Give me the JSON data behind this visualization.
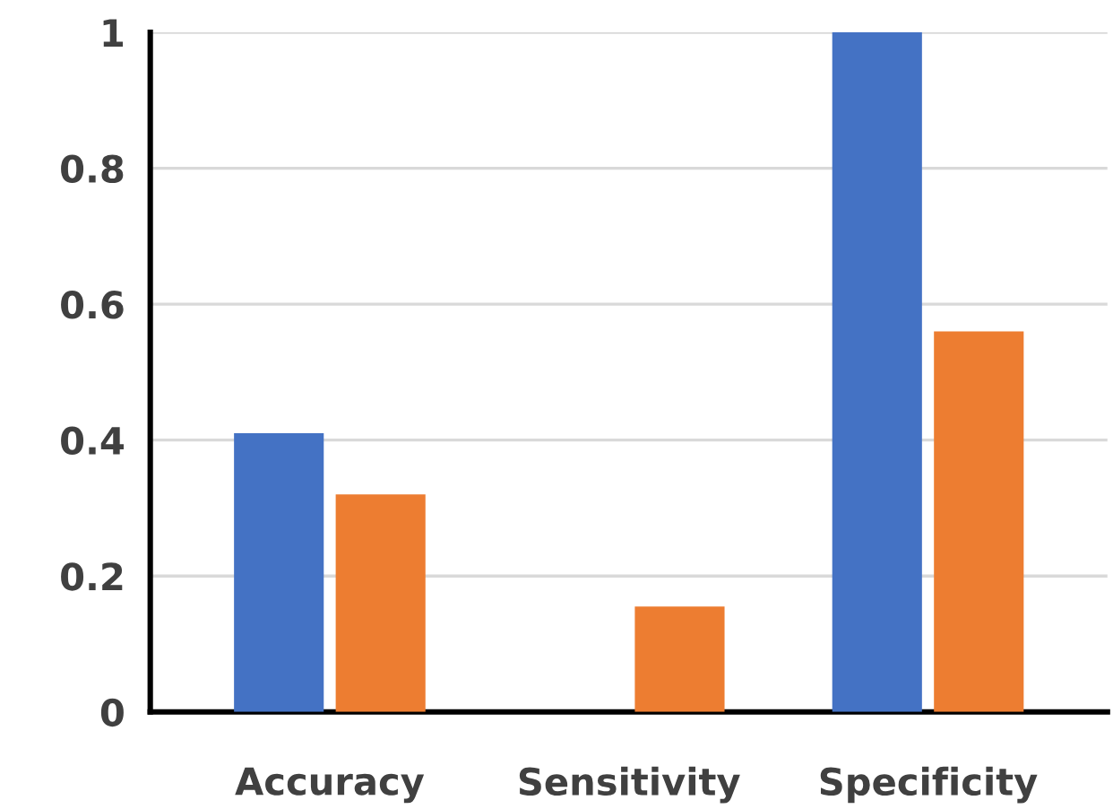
{
  "chart_data": {
    "type": "bar",
    "categories": [
      "Accuracy",
      "Sensitivity",
      "Specificity"
    ],
    "series": [
      {
        "color": "#4472c4",
        "values": [
          0.41,
          0,
          1.0
        ]
      },
      {
        "color": "#ed7d31",
        "values": [
          0.32,
          0.155,
          0.56
        ]
      }
    ],
    "ylim": [
      0,
      1
    ],
    "yticks": [
      0,
      0.2,
      0.4,
      0.6,
      0.8,
      1
    ],
    "grid": "y",
    "legend": false
  }
}
